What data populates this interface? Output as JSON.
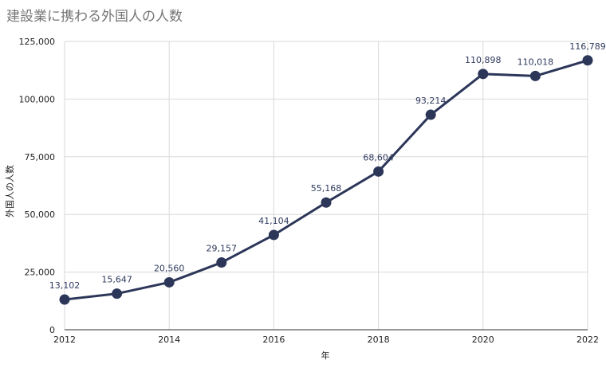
{
  "chart_data": {
    "type": "line",
    "title": "建設業に携わる外国人の人数",
    "xlabel": "年",
    "ylabel": "外国人の人数",
    "x": [
      2012,
      2013,
      2014,
      2015,
      2016,
      2017,
      2018,
      2019,
      2020,
      2021,
      2022
    ],
    "series": [
      {
        "values": [
          13102,
          15647,
          20560,
          29157,
          41104,
          55168,
          68604,
          93214,
          110898,
          110018,
          116789
        ],
        "labels": [
          "13,102",
          "15,647",
          "20,560",
          "29,157",
          "41,104",
          "55,168",
          "68,604",
          "93,214",
          "110,898",
          "110,018",
          "116,789"
        ],
        "color": "#2c3659"
      }
    ],
    "ylim": [
      0,
      125000
    ],
    "xlim": [
      2012,
      2022
    ],
    "yticks": [
      0,
      25000,
      50000,
      75000,
      100000,
      125000
    ],
    "ytick_labels": [
      "0",
      "25,000",
      "50,000",
      "75,000",
      "100,000",
      "125,000"
    ],
    "xticks": [
      2012,
      2014,
      2016,
      2018,
      2020,
      2022
    ],
    "xtick_labels": [
      "2012",
      "2014",
      "2016",
      "2018",
      "2020",
      "2022"
    ],
    "grid": true,
    "legend": "none"
  }
}
